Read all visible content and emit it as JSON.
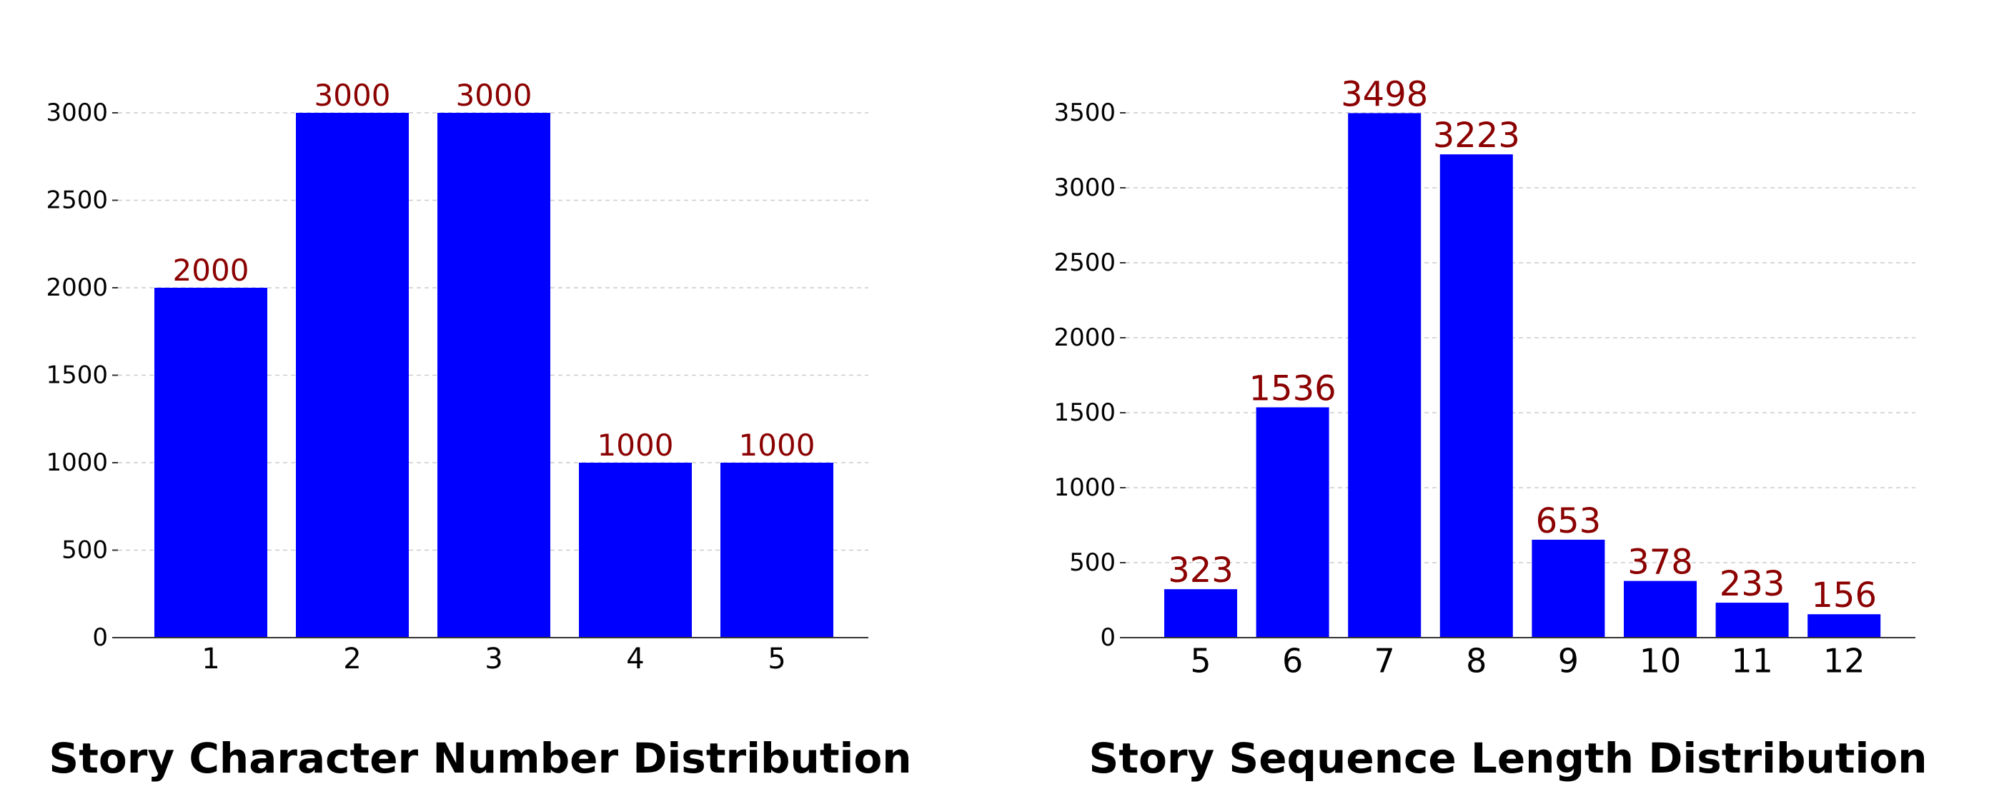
{
  "chart_data": [
    {
      "type": "bar",
      "title": "Story Character Number Distribution",
      "xlabel": "",
      "ylabel": "",
      "categories": [
        "1",
        "2",
        "3",
        "4",
        "5"
      ],
      "values": [
        2000,
        3000,
        3000,
        1000,
        1000
      ],
      "ylim": [
        0,
        3000
      ],
      "yticks": [
        0,
        500,
        1000,
        1500,
        2000,
        2500,
        3000
      ],
      "grid": "horizontal dashed",
      "bar_color": "#0000ff",
      "label_color": "#8b0000"
    },
    {
      "type": "bar",
      "title": "Story Sequence Length Distribution",
      "xlabel": "",
      "ylabel": "",
      "categories": [
        "5",
        "6",
        "7",
        "8",
        "9",
        "10",
        "11",
        "12"
      ],
      "values": [
        323,
        1536,
        3498,
        3223,
        653,
        378,
        233,
        156
      ],
      "ylim": [
        0,
        3500
      ],
      "yticks": [
        0,
        500,
        1000,
        1500,
        2000,
        2500,
        3000,
        3500
      ],
      "grid": "horizontal dashed",
      "bar_color": "#0000ff",
      "label_color": "#8b0000"
    }
  ]
}
